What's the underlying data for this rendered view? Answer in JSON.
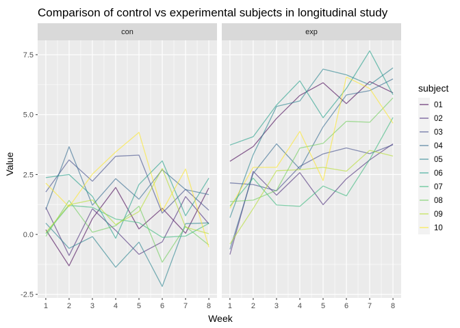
{
  "chart_data": {
    "type": "line",
    "title": "Comparison of control vs experimental subjects in longitudinal study",
    "xlabel": "Week",
    "ylabel": "Value",
    "x": [
      1,
      2,
      3,
      4,
      5,
      6,
      7,
      8
    ],
    "xlim": [
      0.65,
      8.35
    ],
    "ylim": [
      -2.65,
      8.1
    ],
    "y_ticks": [
      -2.5,
      0.0,
      2.5,
      5.0,
      7.5
    ],
    "y_tick_labels": [
      "-2.5",
      "0.0",
      "2.5",
      "5.0",
      "7.5"
    ],
    "grid": true,
    "legend": {
      "title": "subject",
      "placement": "right"
    },
    "palette": {
      "01": "#440154",
      "02": "#482878",
      "03": "#3E4A89",
      "04": "#31688E",
      "05": "#26828E",
      "06": "#1F9E89",
      "07": "#35B779",
      "08": "#6DCD59",
      "09": "#B4DE2C",
      "10": "#FDE725"
    },
    "panels": [
      {
        "name": "con",
        "series": [
          {
            "name": "01",
            "values": [
              0.2,
              -1.31,
              0.66,
              1.96,
              0.23,
              1.09,
              0.05,
              1.94
            ]
          },
          {
            "name": "02",
            "values": [
              1.13,
              -0.88,
              1.07,
              0.17,
              -0.83,
              -0.31,
              1.58,
              0.44
            ]
          },
          {
            "name": "03",
            "values": [
              1.77,
              3.11,
              2.22,
              3.26,
              3.31,
              0.89,
              1.88,
              1.01
            ]
          },
          {
            "name": "04",
            "values": [
              1.04,
              3.66,
              1.22,
              2.33,
              1.47,
              2.7,
              1.87,
              1.66
            ]
          },
          {
            "name": "05",
            "values": [
              0.47,
              -0.58,
              -0.09,
              -1.37,
              -0.32,
              -2.17,
              0.45,
              0.48
            ]
          },
          {
            "name": "06",
            "values": [
              2.37,
              2.5,
              1.59,
              -0.16,
              2.08,
              3.07,
              0.78,
              2.35
            ]
          },
          {
            "name": "07",
            "values": [
              0.03,
              1.21,
              1.13,
              0.64,
              0.49,
              -0.12,
              -0.07,
              0.46
            ]
          },
          {
            "name": "08",
            "values": [
              -0.08,
              1.42,
              0.09,
              0.36,
              1.18,
              -1.16,
              0.33,
              -0.44
            ]
          },
          {
            "name": "09",
            "values": [
              0.08,
              1.24,
              1.44,
              0.41,
              0.95,
              2.75,
              0.3,
              0.03
            ]
          },
          {
            "name": "10",
            "values": [
              2.14,
              1.15,
              2.52,
              3.44,
              4.26,
              0.97,
              2.73,
              -0.53
            ]
          }
        ]
      },
      {
        "name": "exp",
        "series": [
          {
            "name": "01",
            "values": [
              3.05,
              3.67,
              4.84,
              5.8,
              6.33,
              5.46,
              6.38,
              5.91
            ]
          },
          {
            "name": "02",
            "values": [
              -0.84,
              2.63,
              1.64,
              2.58,
              1.24,
              2.32,
              3.11,
              3.78
            ]
          },
          {
            "name": "03",
            "values": [
              2.15,
              2.08,
              1.82,
              2.84,
              3.36,
              3.61,
              3.37,
              3.74
            ]
          },
          {
            "name": "04",
            "values": [
              -0.62,
              2.54,
              3.78,
              2.73,
              4.49,
              5.82,
              6.0,
              6.49
            ]
          },
          {
            "name": "05",
            "values": [
              0.7,
              3.33,
              5.34,
              5.57,
              6.9,
              6.66,
              6.24,
              6.95
            ]
          },
          {
            "name": "06",
            "values": [
              3.73,
              4.08,
              5.4,
              6.41,
              4.87,
              6.09,
              7.66,
              5.83
            ]
          },
          {
            "name": "07",
            "values": [
              1.18,
              2.35,
              1.23,
              1.17,
              2.02,
              1.61,
              3.13,
              4.88
            ]
          },
          {
            "name": "08",
            "values": [
              1.37,
              1.43,
              1.84,
              3.6,
              3.8,
              4.72,
              4.68,
              5.7
            ]
          },
          {
            "name": "09",
            "values": [
              -0.4,
              1.08,
              2.66,
              2.7,
              2.8,
              2.64,
              3.51,
              3.27
            ]
          },
          {
            "name": "10",
            "values": [
              1.09,
              2.8,
              2.8,
              4.3,
              2.25,
              6.57,
              6.09,
              4.64
            ]
          }
        ]
      }
    ]
  }
}
